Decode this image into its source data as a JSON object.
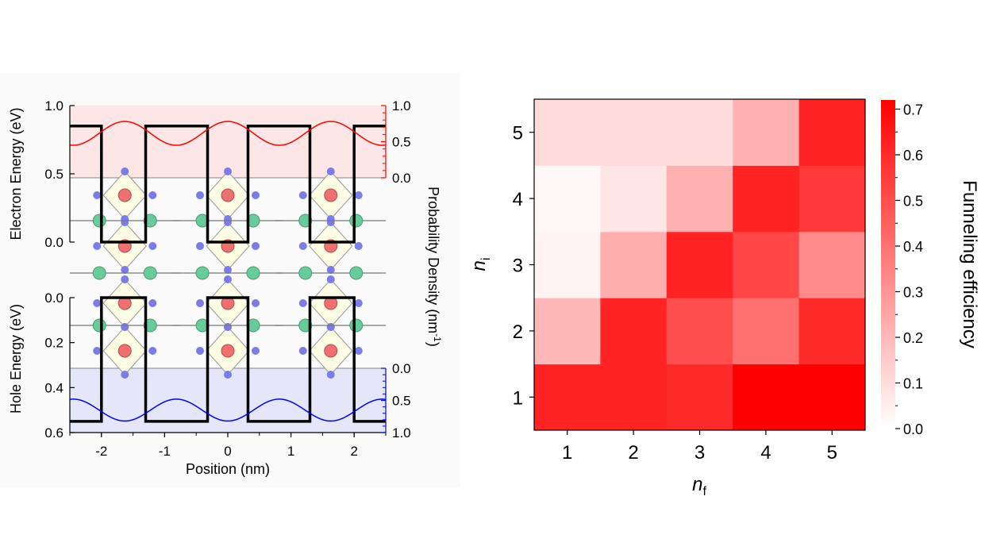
{
  "chart_data": [
    {
      "type": "line",
      "xlabel": "Position (nm)",
      "ylabel_top": "Electron Energy (eV)",
      "ylabel_bottom": "Hole Energy (eV)",
      "ylabel_right": "Probability Density (nm",
      "ylabel_right_sup": "-1",
      "ylabel_right_end": ")",
      "xlim": [
        -2.5,
        2.5
      ],
      "x_ticks": [
        -2,
        -1,
        0,
        1,
        2
      ],
      "x_tick_labels": [
        "-2",
        "-1",
        "0",
        "1",
        "2"
      ],
      "electron_energy_ylim": [
        0.0,
        1.0
      ],
      "electron_energy_ticks": [
        0.0,
        0.5,
        1.0
      ],
      "electron_energy_tick_labels": [
        "0.0",
        "0.5",
        "1.0"
      ],
      "hole_energy_ylim": [
        0.0,
        0.6
      ],
      "hole_energy_ticks": [
        0.0,
        0.2,
        0.4,
        0.6
      ],
      "hole_energy_tick_labels": [
        "0.0",
        "0.2",
        "0.4",
        "0.6"
      ],
      "probability_top_ticks": [
        0.0,
        0.5,
        1.0
      ],
      "probability_top_tick_labels": [
        "0.0",
        "0.5",
        "1.0"
      ],
      "probability_bottom_ticks": [
        0.0,
        0.5,
        1.0
      ],
      "probability_bottom_tick_labels": [
        "0.0",
        "0.5",
        "1.0"
      ],
      "well_boundaries_nm": [
        -2.0,
        -1.3,
        -0.32,
        0.32,
        1.3,
        2.0
      ],
      "electron_barrier_eV": 0.85,
      "electron_well_bottom_eV": 0.0,
      "hole_barrier_eV": 0.55,
      "hole_well_top_eV": 0.0,
      "electron_level_eV": 0.48,
      "hole_level_eV": 0.31,
      "colors": {
        "electron": "#ff0000",
        "hole": "#0000ff",
        "electron_fill": "#fde6e6",
        "hole_fill": "#e6e6fb",
        "potential": "#000000",
        "atom_center": "#f07070",
        "atom_corner": "#7b7bea",
        "atom_spacer": "#66cc99",
        "octahedron": "#fdfde0"
      }
    },
    {
      "type": "heatmap",
      "xlabel": "n",
      "xlabel_sub": "f",
      "ylabel": "n",
      "ylabel_sub": "i",
      "x_categories": [
        "1",
        "2",
        "3",
        "4",
        "5"
      ],
      "y_categories": [
        "1",
        "2",
        "3",
        "4",
        "5"
      ],
      "values": [
        [
          0.62,
          0.62,
          0.6,
          0.72,
          0.72
        ],
        [
          0.2,
          0.62,
          0.5,
          0.4,
          0.6
        ],
        [
          0.03,
          0.23,
          0.62,
          0.52,
          0.33
        ],
        [
          0.02,
          0.07,
          0.22,
          0.62,
          0.56
        ],
        [
          0.1,
          0.1,
          0.1,
          0.22,
          0.62
        ]
      ],
      "value_rows_order": "n_i = 1 to 5",
      "colorbar_label": "Funneling efficiency",
      "colorbar_range": [
        0.0,
        0.72
      ],
      "colorbar_ticks": [
        0.0,
        0.1,
        0.2,
        0.3,
        0.4,
        0.5,
        0.6,
        0.7
      ],
      "colorbar_tick_labels": [
        "0.0",
        "0.1",
        "0.2",
        "0.3",
        "0.4",
        "0.5",
        "0.6",
        "0.7"
      ],
      "colormap": [
        "#ffffff",
        "#ff0000"
      ]
    }
  ]
}
